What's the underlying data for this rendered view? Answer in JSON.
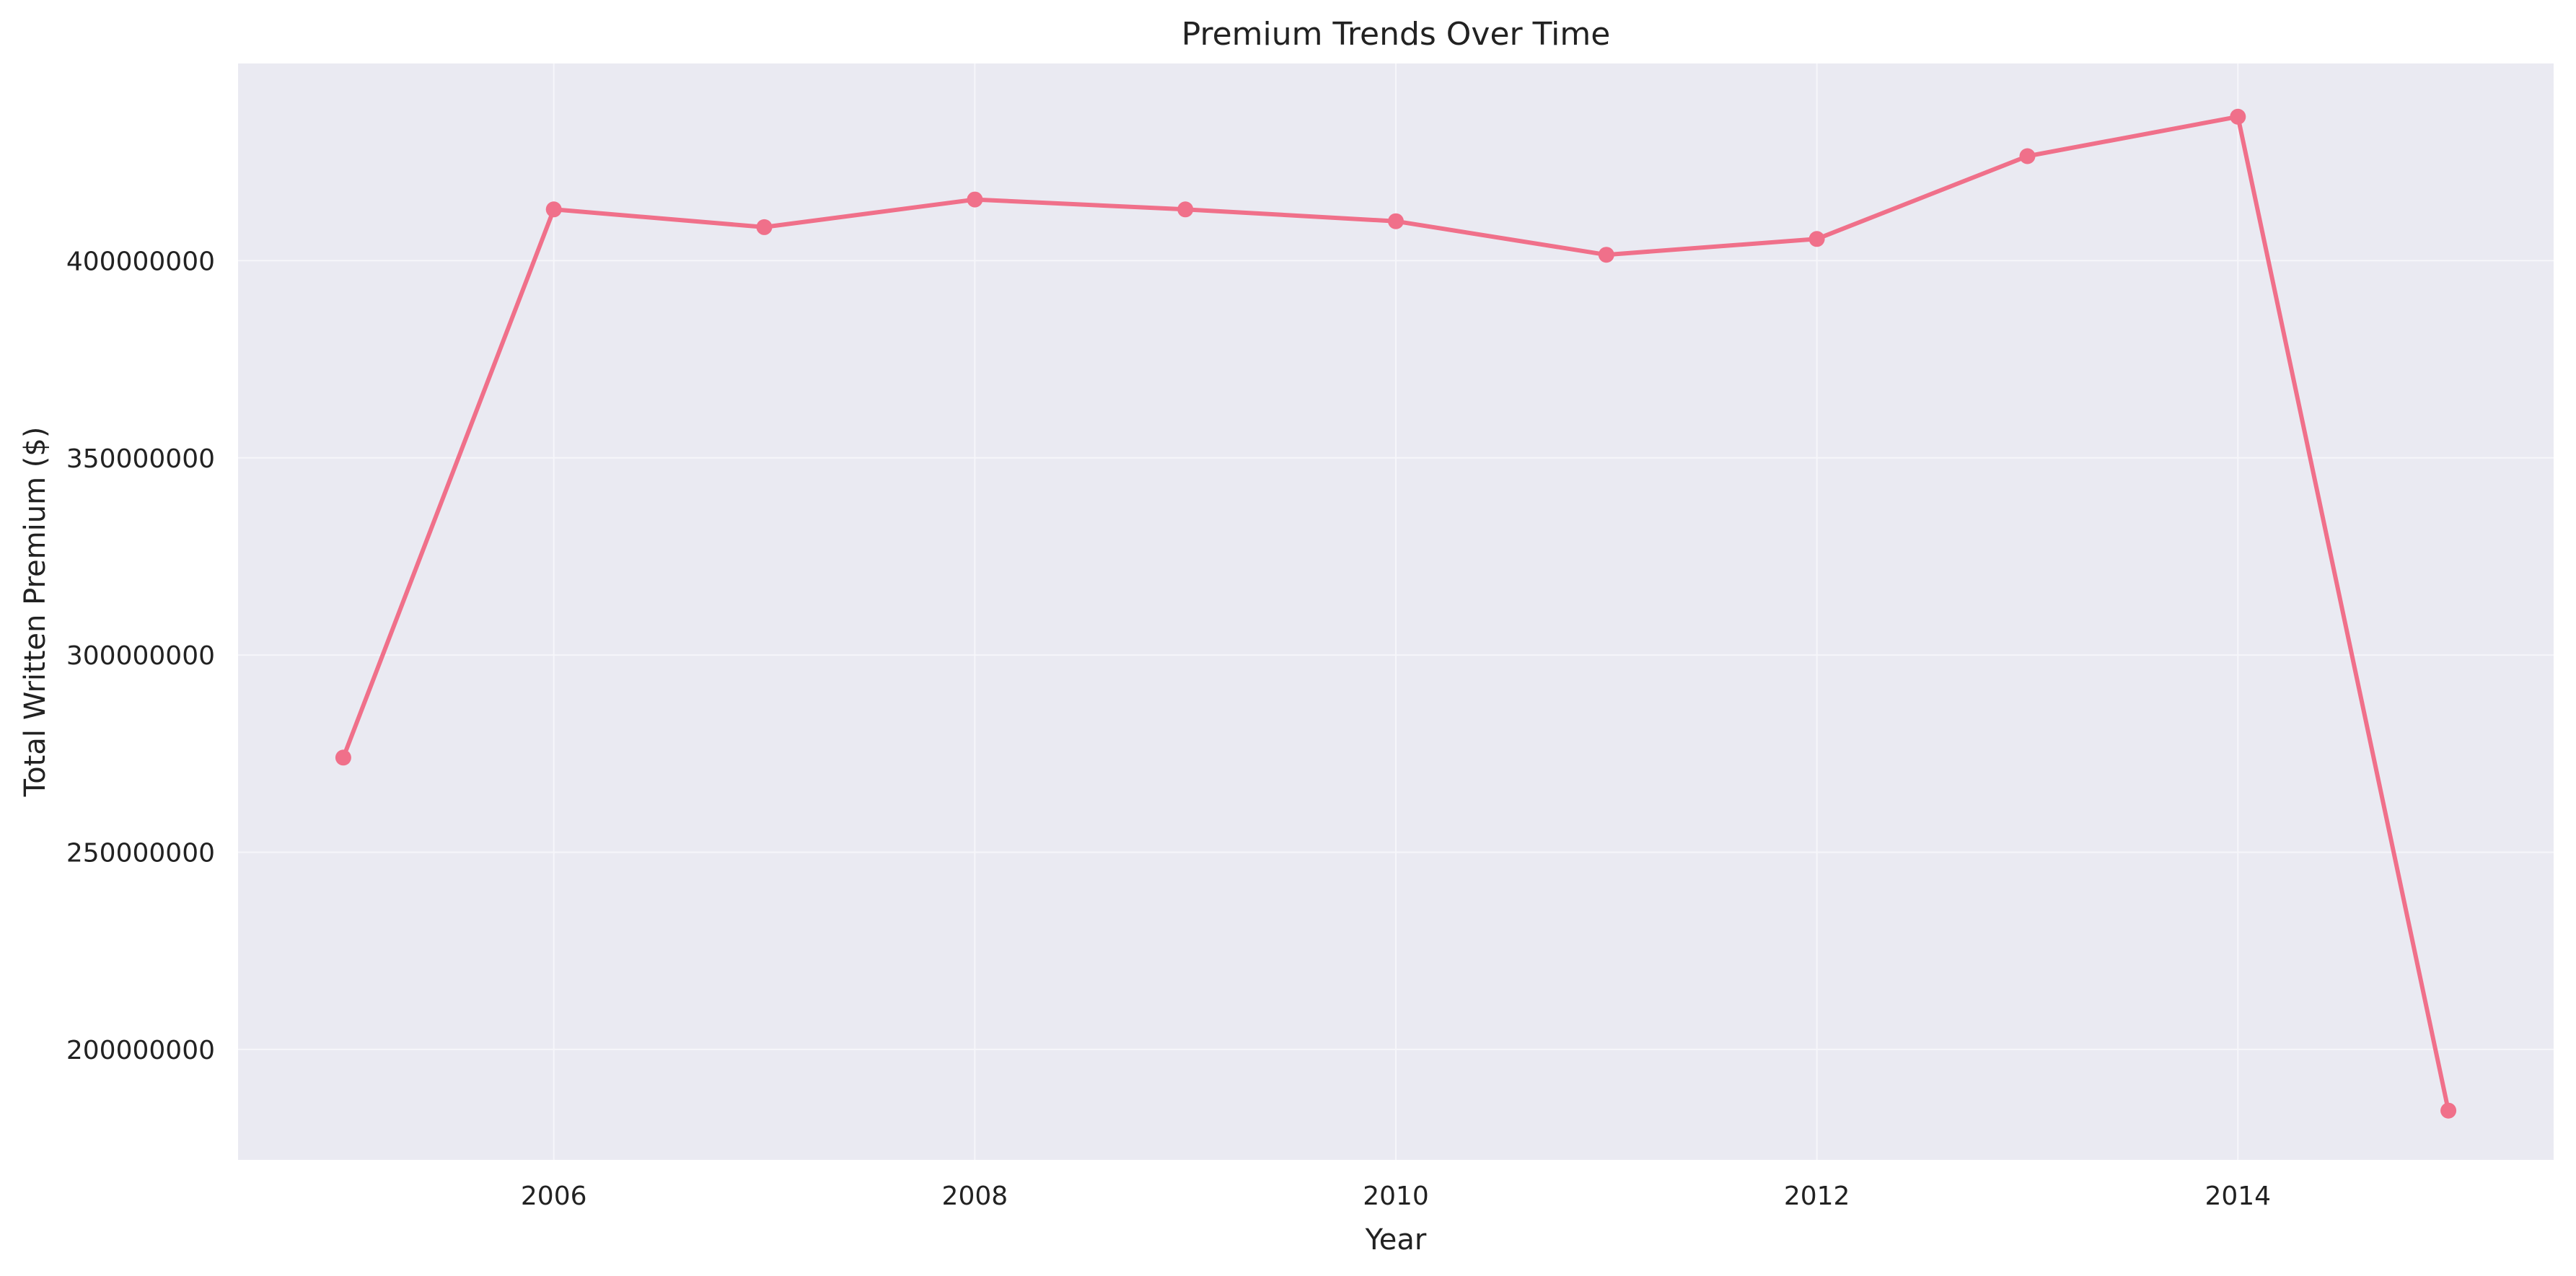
{
  "chart_data": {
    "type": "line",
    "title": "Premium Trends Over Time",
    "xlabel": "Year",
    "ylabel": "Total Written Premium ($)",
    "x": [
      2005,
      2006,
      2007,
      2008,
      2009,
      2010,
      2011,
      2012,
      2013,
      2014,
      2015
    ],
    "series": [
      {
        "values": [
          274000000,
          413000000,
          408500000,
          415500000,
          413000000,
          410000000,
          401500000,
          405500000,
          426500000,
          436500000,
          184500000
        ]
      }
    ],
    "xlim": [
      2004.5,
      2015.5
    ],
    "ylim": [
      172000000,
      450000000
    ],
    "xticks": [
      2006,
      2008,
      2010,
      2012,
      2014
    ],
    "xtick_labels": [
      "2006",
      "2008",
      "2010",
      "2012",
      "2014"
    ],
    "yticks": [
      200000000,
      250000000,
      300000000,
      350000000,
      400000000
    ],
    "ytick_labels": [
      "200000000",
      "250000000",
      "300000000",
      "350000000",
      "400000000"
    ],
    "grid": true,
    "legend": "none",
    "line_color": "#f0708a",
    "plot_background": "#eaeaf2",
    "grid_color": "#f6f6fa"
  }
}
